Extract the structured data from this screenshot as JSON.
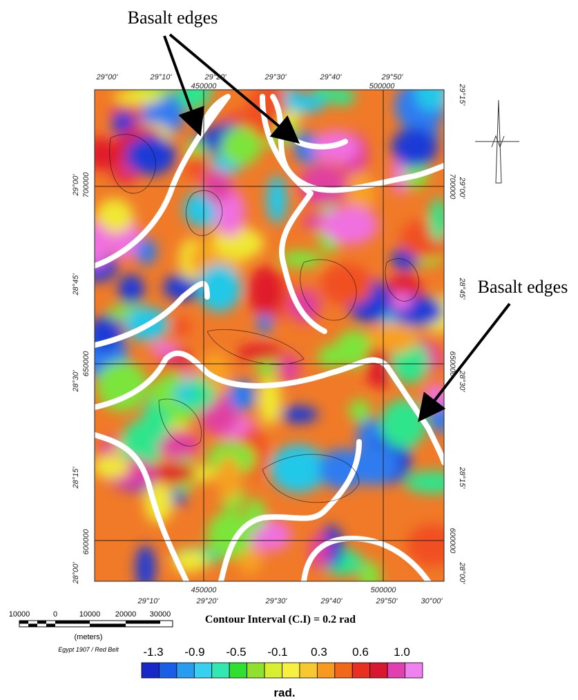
{
  "annotations": [
    "Basalt edges",
    "Basalt edges"
  ],
  "top_labels": [
    "29°00'",
    "29°10'",
    "29°20'",
    "29°30'",
    "29°40'",
    "29°50'"
  ],
  "top_easting": [
    "450000",
    "500000"
  ],
  "left_labels": [
    "29°00'",
    "700000",
    "28°45'",
    "650000",
    "28°30'",
    "28°15'",
    "600000",
    "28°00'"
  ],
  "right_labels": [
    "29°15'",
    "700000",
    "29°00'",
    "28°45'",
    "650000",
    "28°30'",
    "28°15'",
    "600000",
    "28°00'"
  ],
  "bottom_labels": [
    "29°10'",
    "450000",
    "29°20'",
    "29°30'",
    "29°40'",
    "500000",
    "29°50'",
    "30°00'"
  ],
  "scale_bar": {
    "ticks": [
      "10000",
      "0",
      "10000",
      "20000",
      "30000"
    ],
    "unit": "(meters)",
    "datum": "Egypt 1907 / Red Belt"
  },
  "contour_interval": "Contour Interval (C.I) = 0.2 rad",
  "colorbar": {
    "labels": [
      "-1.3",
      "-0.9",
      "-0.5",
      "-0.1",
      "0.3",
      "0.6",
      "1.0"
    ],
    "unit": "rad."
  }
}
